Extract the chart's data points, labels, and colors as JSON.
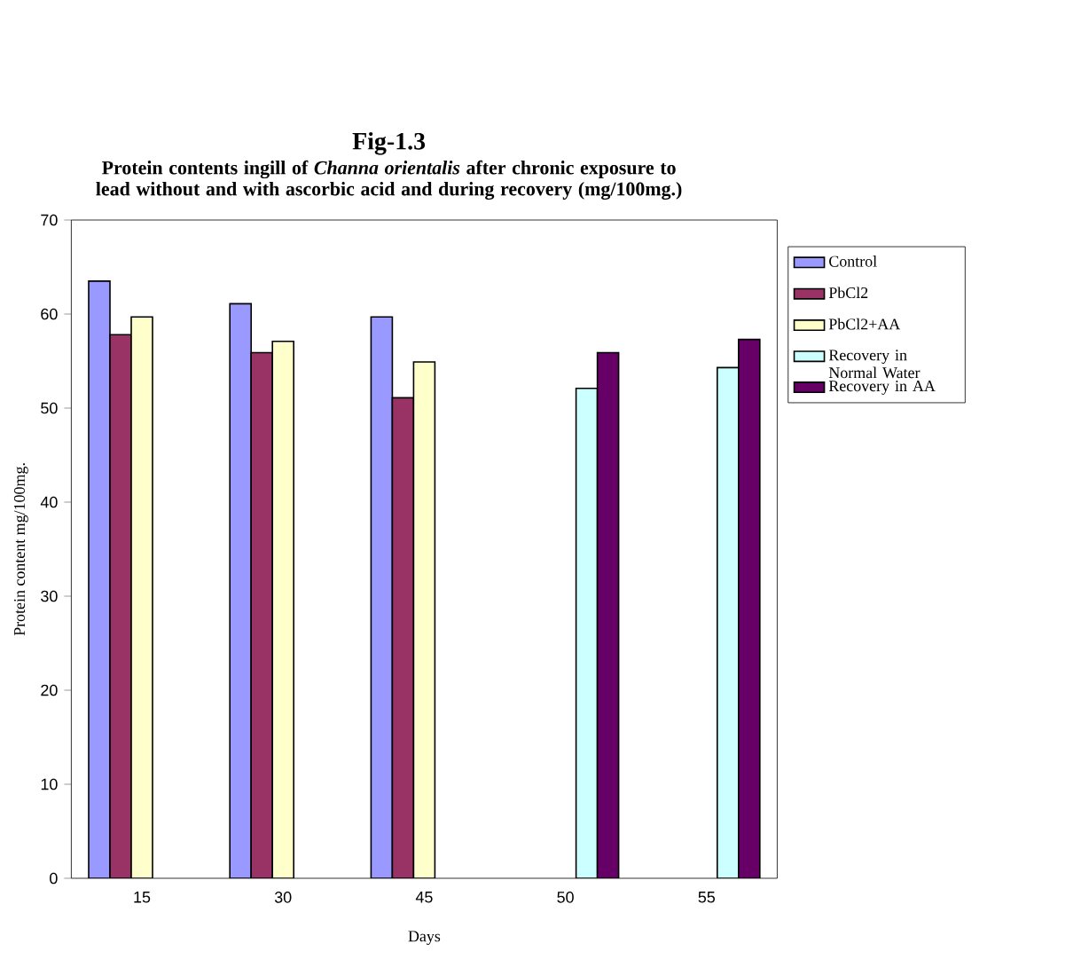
{
  "chart_data": {
    "type": "bar",
    "title": "Fig-1.3",
    "subtitle": "Protein contents ingill of *Channa orientalis* after chronic exposure to lead without and with ascorbic acid and during recovery (mg/100mg.)",
    "xlabel": "Days",
    "ylabel": "Protein content mg/100mg.",
    "categories": [
      "15",
      "30",
      "45",
      "50",
      "55"
    ],
    "series": [
      {
        "name": "Control",
        "color": "#9999ff",
        "values": [
          63.5,
          61.1,
          59.7,
          null,
          null
        ]
      },
      {
        "name": "PbCl2",
        "color": "#993366",
        "values": [
          57.8,
          55.9,
          51.1,
          null,
          null
        ]
      },
      {
        "name": "PbCl2+AA",
        "color": "#ffffcc",
        "values": [
          59.7,
          57.1,
          54.9,
          null,
          null
        ]
      },
      {
        "name": "Recovery in Normal Water",
        "color": "#ccffff",
        "values": [
          null,
          null,
          null,
          52.1,
          54.3
        ]
      },
      {
        "name": "Recovery in AA",
        "color": "#660066",
        "values": [
          null,
          null,
          null,
          55.9,
          57.3
        ]
      }
    ],
    "ylim": [
      0,
      70
    ],
    "yticks": [
      0,
      10,
      20,
      30,
      40,
      50,
      60,
      70
    ],
    "grid": false,
    "legend": "right"
  }
}
